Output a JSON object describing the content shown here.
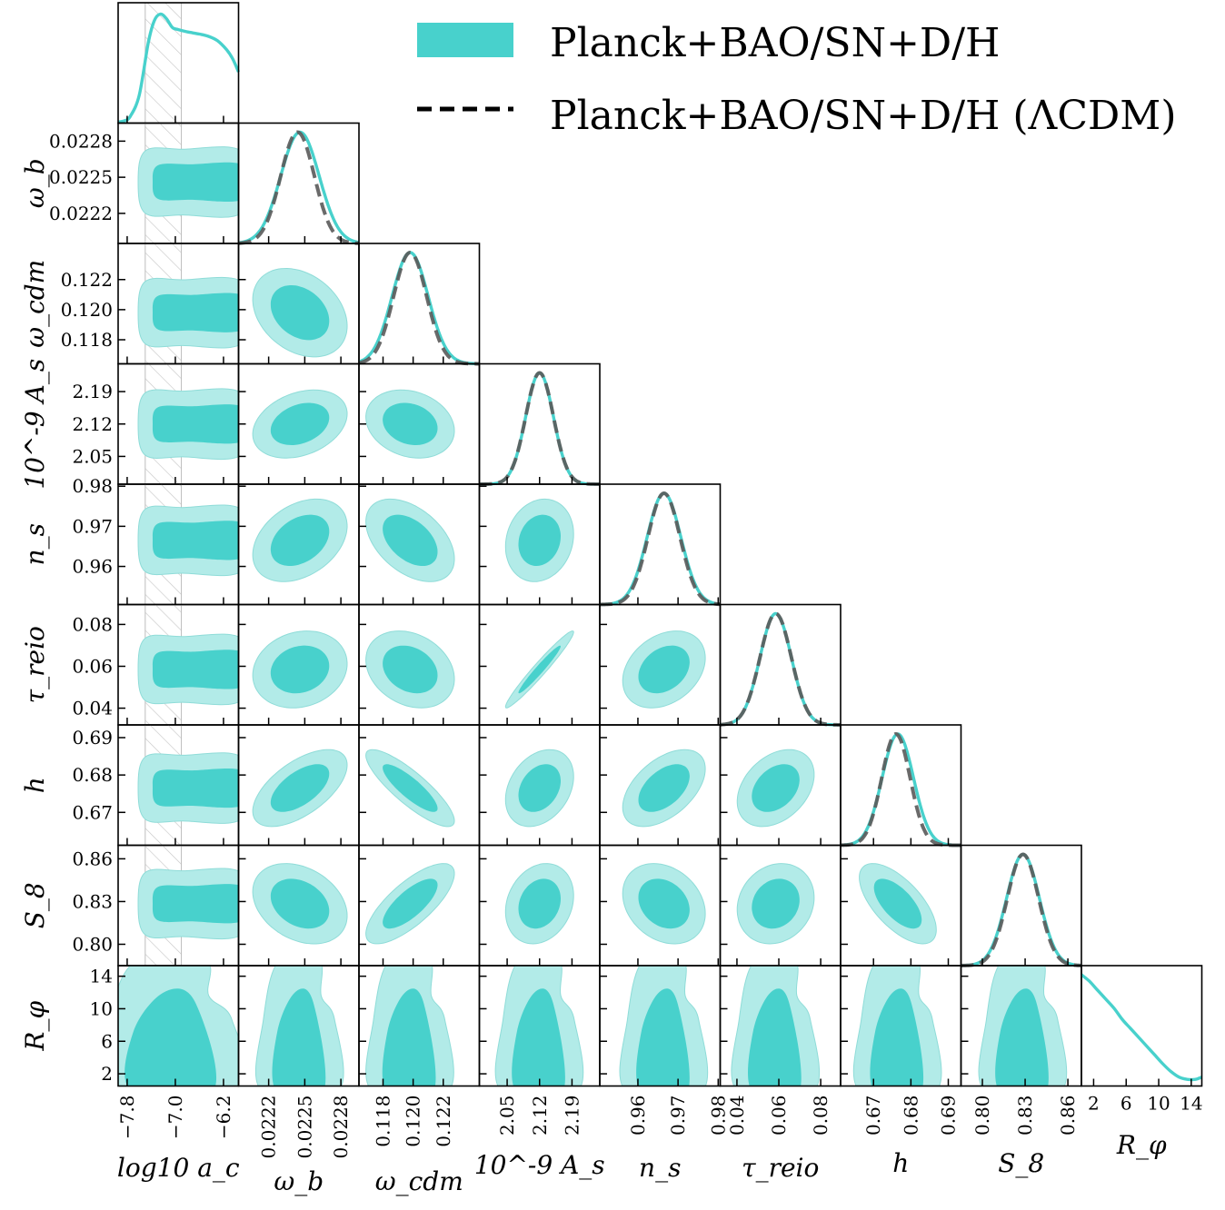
{
  "chart_data": {
    "type": "corner",
    "legend": {
      "placement": "top-right",
      "entries": [
        {
          "label": "Planck+BAO/SN+D/H",
          "style": "filled",
          "color": "#48D1CC"
        },
        {
          "label": "Planck+BAO/SN+D/H (ΛCDM)",
          "style": "dashed",
          "color": "#000000"
        }
      ]
    },
    "colors": {
      "main": "#48D1CC",
      "inner_fill": "#48D1CC",
      "outer_fill": "#B2EBE8",
      "lcdm": "#5a5a5a",
      "hatch": "#c8c8c8"
    },
    "parameters": [
      {
        "name": "log_a_c",
        "label": "log10 a_c",
        "range": [
          -7.95,
          -5.95
        ],
        "ticks": [
          -7.8,
          -7.0,
          -6.2
        ],
        "tick_labels": [
          "−7.8",
          "−7.0",
          "−6.2"
        ],
        "mean": -6.9,
        "sd1": 0.0,
        "sd2": 0.0
      },
      {
        "name": "omega_b",
        "label": "ω_b",
        "range": [
          0.02195,
          0.02295
        ],
        "ticks": [
          0.0222,
          0.0225,
          0.0228
        ],
        "tick_labels": [
          "0.0222",
          "0.0225",
          "0.0228"
        ],
        "mean": 0.02246,
        "sd": 0.00016,
        "lcdm_mean": 0.02244,
        "lcdm_sd": 0.00014
      },
      {
        "name": "omega_cdm",
        "label": "ω_cdm",
        "range": [
          0.1164,
          0.1244
        ],
        "ticks": [
          0.118,
          0.12,
          0.122
        ],
        "tick_labels": [
          "0.118",
          "0.120",
          "0.122"
        ],
        "mean": 0.1198,
        "sd": 0.0012,
        "lcdm_mean": 0.1198,
        "lcdm_sd": 0.0011
      },
      {
        "name": "A_s",
        "label": "10^-9 A_s",
        "range": [
          1.99,
          2.25
        ],
        "ticks": [
          2.05,
          2.12,
          2.19
        ],
        "tick_labels": [
          "2.05",
          "2.12",
          "2.19"
        ],
        "mean": 2.12,
        "sd": 0.03,
        "lcdm_mean": 2.12,
        "lcdm_sd": 0.03
      },
      {
        "name": "n_s",
        "label": "n_s",
        "range": [
          0.9505,
          0.9805
        ],
        "ticks": [
          0.96,
          0.97,
          0.98
        ],
        "tick_labels": [
          "0.96",
          "0.97",
          "0.98"
        ],
        "mean": 0.9665,
        "sd": 0.0042,
        "lcdm_mean": 0.9665,
        "lcdm_sd": 0.004
      },
      {
        "name": "tau_reio",
        "label": "τ_reio",
        "range": [
          0.032,
          0.0895
        ],
        "ticks": [
          0.04,
          0.06,
          0.08
        ],
        "tick_labels": [
          "0.04",
          "0.06",
          "0.08"
        ],
        "mean": 0.0585,
        "sd": 0.0075,
        "lcdm_mean": 0.0585,
        "lcdm_sd": 0.0075
      },
      {
        "name": "h",
        "label": "h",
        "range": [
          0.6612,
          0.6934
        ],
        "ticks": [
          0.67,
          0.68,
          0.69
        ],
        "tick_labels": [
          "0.67",
          "0.68",
          "0.69"
        ],
        "mean": 0.6765,
        "sd": 0.0042,
        "lcdm_mean": 0.676,
        "lcdm_sd": 0.0038
      },
      {
        "name": "S8",
        "label": "S_8",
        "range": [
          0.785,
          0.8695
        ],
        "ticks": [
          0.8,
          0.83,
          0.86
        ],
        "tick_labels": [
          "0.80",
          "0.83",
          "0.86"
        ],
        "mean": 0.8285,
        "sd": 0.0115,
        "lcdm_mean": 0.8285,
        "lcdm_sd": 0.011
      },
      {
        "name": "R_phi",
        "label": "R_φ",
        "range": [
          0.5,
          15.3
        ],
        "ticks": [
          2,
          6,
          10,
          14
        ],
        "tick_labels": [
          "2",
          "6",
          "10",
          "14"
        ],
        "mean": 3.0,
        "sd": 3.0
      }
    ],
    "y_tick_labels": {
      "omega_b": [
        "0.0228",
        "0.0225",
        "0.0222"
      ],
      "R_phi": [
        "10",
        "6",
        "2"
      ]
    },
    "log_a_c_posterior": {
      "x": [
        -7.95,
        -7.85,
        -7.75,
        -7.6,
        -7.45,
        -7.35,
        -7.25,
        -7.15,
        -7.05,
        -6.95,
        -6.8,
        -6.6,
        -6.45,
        -6.3,
        -6.15,
        -6.05,
        -5.95
      ],
      "density": [
        0.01,
        0.02,
        0.06,
        0.25,
        0.72,
        0.92,
        0.98,
        0.94,
        0.86,
        0.84,
        0.82,
        0.8,
        0.78,
        0.74,
        0.66,
        0.58,
        0.46
      ]
    },
    "R_phi_posterior": {
      "x": [
        0.5,
        1.5,
        2.5,
        3.5,
        4.5,
        5.5,
        6.5,
        7.5,
        8.5,
        9.5,
        10.5,
        11.5,
        12.5,
        13.5,
        14.5,
        15.3
      ],
      "density": [
        1.0,
        0.94,
        0.86,
        0.78,
        0.7,
        0.6,
        0.52,
        0.44,
        0.36,
        0.28,
        0.2,
        0.13,
        0.08,
        0.06,
        0.06,
        0.08
      ]
    },
    "hatched_band": {
      "parameter": "log_a_c",
      "range": [
        -7.5,
        -6.9
      ]
    },
    "correlations": {
      "2,1": -0.3,
      "3,1": 0.3,
      "3,2": -0.2,
      "4,1": 0.35,
      "4,2": -0.45,
      "4,3": 0.15,
      "5,1": 0.15,
      "5,2": -0.25,
      "5,3": 0.97,
      "5,4": 0.3,
      "6,1": 0.6,
      "6,2": -0.85,
      "6,3": 0.3,
      "6,4": 0.5,
      "6,5": 0.35,
      "7,1": -0.3,
      "7,2": 0.75,
      "7,3": 0.2,
      "7,4": -0.25,
      "7,5": 0.15,
      "7,6": -0.65
    },
    "grid": false
  }
}
